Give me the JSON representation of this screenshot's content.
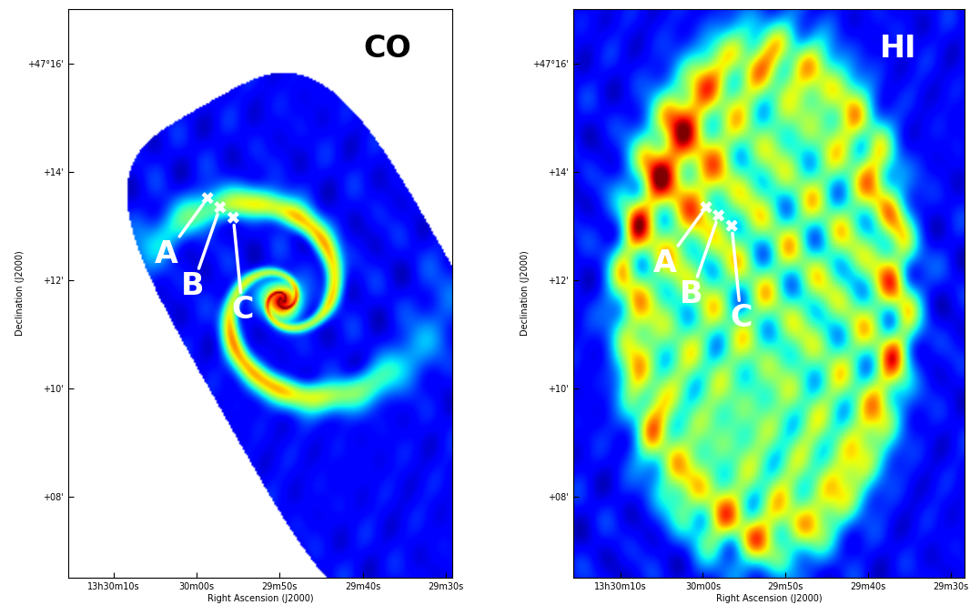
{
  "chart_data": [
    {
      "type": "image",
      "title": "CO",
      "x_label": "Right Ascension (J2000)",
      "y_label": "Declination (J2000)",
      "xlim": [
        48615.5,
        48569.2
      ],
      "ylim": [
        6.5,
        17.0
      ],
      "xticks": [
        {
          "value": 48610,
          "label": "13h30m10s"
        },
        {
          "value": 48600,
          "label": "30m00s"
        },
        {
          "value": 48590,
          "label": "29m50s"
        },
        {
          "value": 48580,
          "label": "29m40s"
        },
        {
          "value": 48570,
          "label": "29m30s"
        }
      ],
      "yticks": [
        {
          "value": 8,
          "label": "+08'"
        },
        {
          "value": 10,
          "label": "+10'"
        },
        {
          "value": 12,
          "label": "+12'"
        },
        {
          "value": 14,
          "label": "+14'"
        },
        {
          "value": 16,
          "label": "+47°16'"
        }
      ],
      "points": {
        "labels": [
          "A",
          "B",
          "C"
        ],
        "x": [
          48598.7,
          48597.2,
          48595.6
        ],
        "y": [
          13.51,
          13.34,
          13.15
        ]
      },
      "color": "#ffffff",
      "marker": "X"
    },
    {
      "type": "image",
      "title": "HI",
      "x_label": "Right Ascension (J2000)",
      "y_label": "Declination (J2000)",
      "xlim": [
        48615.7,
        48568.3
      ],
      "ylim": [
        6.5,
        17.0
      ],
      "xticks": [
        {
          "value": 48610,
          "label": "13h30m10s"
        },
        {
          "value": 48600,
          "label": "30m00s"
        },
        {
          "value": 48590,
          "label": "29m50s"
        },
        {
          "value": 48580,
          "label": "29m40s"
        },
        {
          "value": 48570,
          "label": "29m30s"
        }
      ],
      "yticks": [
        {
          "value": 8,
          "label": "+08'"
        },
        {
          "value": 10,
          "label": "+10'"
        },
        {
          "value": 12,
          "label": "+12'"
        },
        {
          "value": 14,
          "label": "+14'"
        },
        {
          "value": 16,
          "label": "+47°16'"
        }
      ],
      "points": {
        "labels": [
          "A",
          "B",
          "C"
        ],
        "x": [
          48599.6,
          48598.1,
          48596.5
        ],
        "y": [
          13.34,
          13.19,
          13.0
        ]
      },
      "color": "#ffffff",
      "marker": "X"
    }
  ]
}
